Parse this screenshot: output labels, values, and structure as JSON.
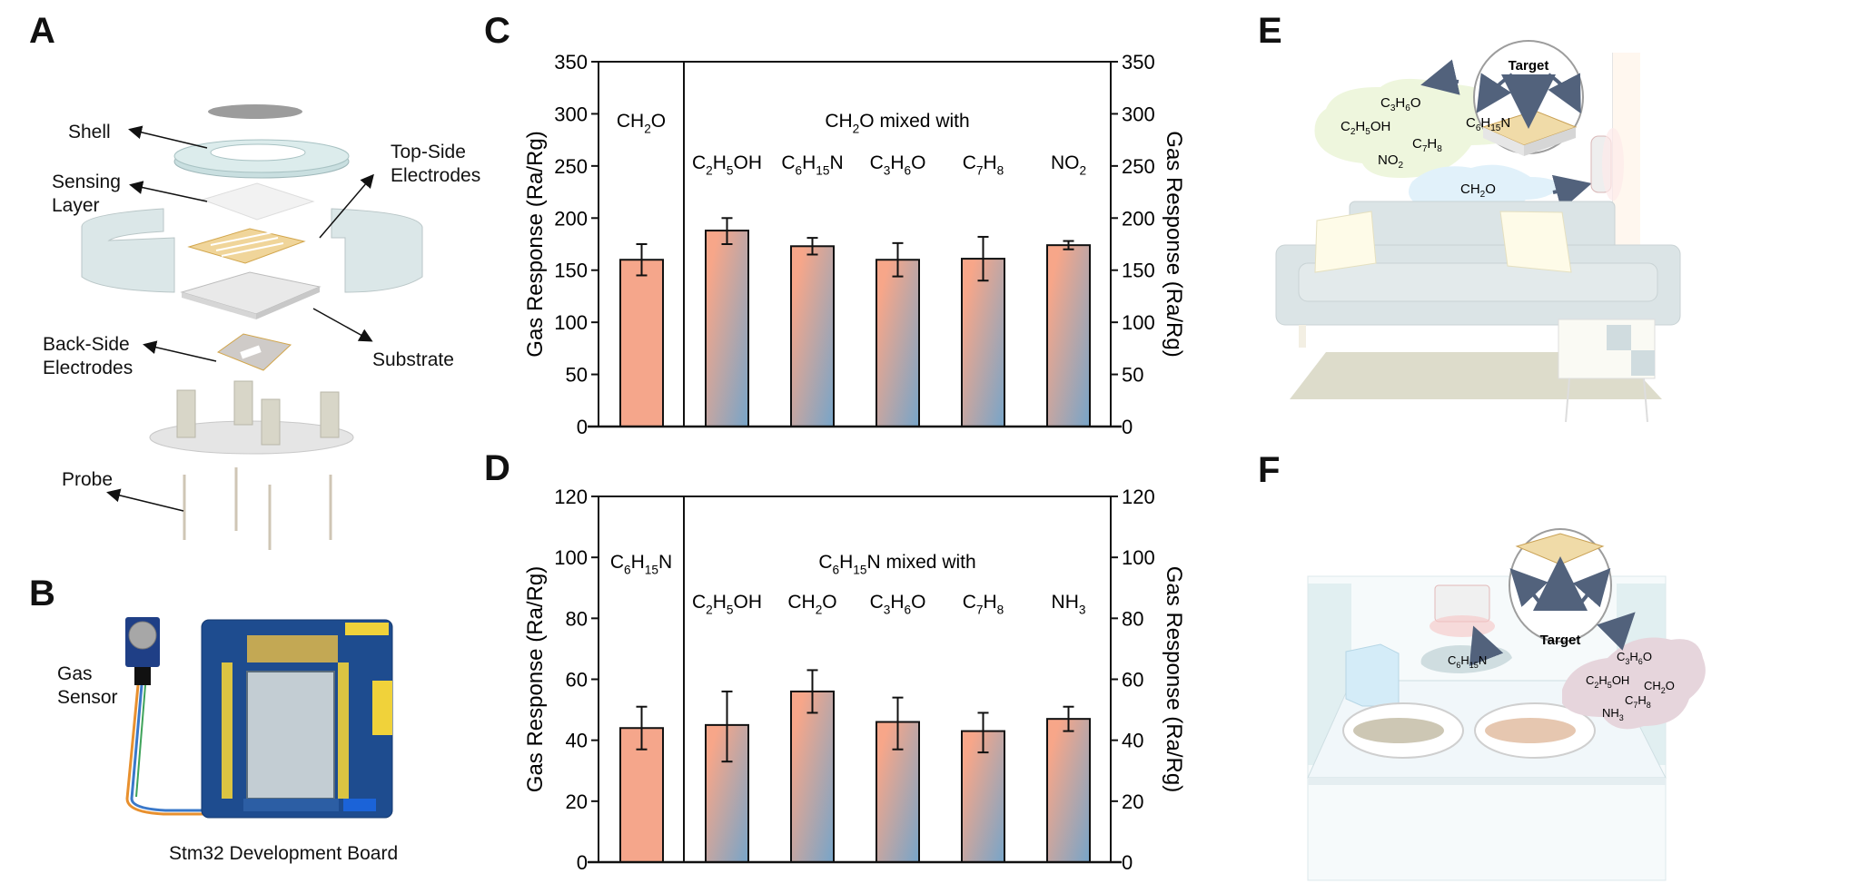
{
  "panels": {
    "A": {
      "letter": "A",
      "labels": {
        "shell": "Shell",
        "sensing_layer_1": "Sensing",
        "sensing_layer_2": "Layer",
        "top_side_1": "Top-Side",
        "top_side_2": "Electrodes",
        "substrate": "Substrate",
        "back_side_1": "Back-Side",
        "back_side_2": "Electrodes",
        "probe": "Probe"
      }
    },
    "B": {
      "letter": "B",
      "gas_sensor_1": "Gas",
      "gas_sensor_2": "Sensor",
      "caption": "Stm32 Development Board"
    },
    "E": {
      "letter": "E",
      "target_label": "Target",
      "interferents": [
        "C3H6O",
        "C2H5OH",
        "C6H15N",
        "C7H8",
        "NO2"
      ],
      "target_gas": "CH2O"
    },
    "F": {
      "letter": "F",
      "target_label": "Target",
      "target_gas": "C6H15N",
      "interferents": [
        "C3H6O",
        "C2H5OH",
        "CH2O",
        "C7H8",
        "NH3"
      ]
    }
  },
  "colors": {
    "bar_pure": "#f5a68b",
    "bar_grad_start": "#f7a689",
    "bar_grad_end": "#76a5c9",
    "axis": "#111111",
    "cloud_green": "#eef6dd",
    "cloud_blue": "#e1f1fa",
    "cloud_pink": "#e6d5dc"
  },
  "chart_data": [
    {
      "panel": "C",
      "letter": "C",
      "type": "bar",
      "ylabel": "Gas Response (Ra/Rg)",
      "ylabel_right": "Gas Response (Ra/Rg)",
      "ylim": [
        0,
        350
      ],
      "yticks": [
        0,
        50,
        100,
        150,
        200,
        250,
        300,
        350
      ],
      "pure_label": "CH2O",
      "group_label": "CH2O mixed with",
      "categories": [
        "CH2O",
        "C2H5OH",
        "C6H15N",
        "C3H6O",
        "C7H8",
        "NO2"
      ],
      "values": [
        160,
        188,
        173,
        160,
        161,
        174
      ],
      "errors_low": [
        145,
        175,
        165,
        144,
        140,
        170
      ],
      "errors_high": [
        175,
        200,
        181,
        176,
        182,
        178
      ],
      "grid": false
    },
    {
      "panel": "D",
      "letter": "D",
      "type": "bar",
      "ylabel": "Gas Response (Ra/Rg)",
      "ylabel_right": "Gas Response (Ra/Rg)",
      "ylim": [
        0,
        120
      ],
      "yticks": [
        0,
        20,
        40,
        60,
        80,
        100,
        120
      ],
      "pure_label": "C6H15N",
      "group_label": "C6H15N mixed with",
      "categories": [
        "C6H15N",
        "C2H5OH",
        "CH2O",
        "C3H6O",
        "C7H8",
        "NH3"
      ],
      "values": [
        44,
        45,
        56,
        46,
        43,
        47
      ],
      "errors_low": [
        37,
        33,
        49,
        37,
        36,
        43
      ],
      "errors_high": [
        51,
        56,
        63,
        54,
        49,
        51
      ],
      "grid": false
    }
  ]
}
